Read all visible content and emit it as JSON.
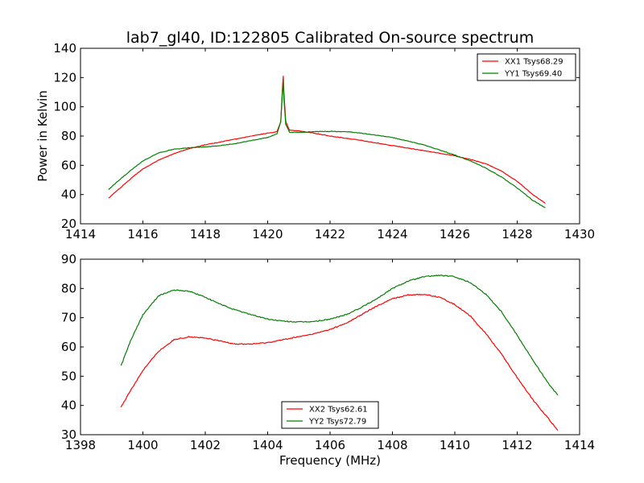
{
  "figure": {
    "title": "lab7_gl40, ID:122805 Calibrated On-source spectrum",
    "ylabel": "Power in Kelvin",
    "xlabel": "Frequency (MHz)"
  },
  "chart_data": [
    {
      "type": "line",
      "title": "lab7_gl40, ID:122805 Calibrated On-source spectrum",
      "ylabel": "Power in Kelvin",
      "xlabel": "",
      "xlim": [
        1414,
        1430
      ],
      "ylim": [
        20,
        140
      ],
      "xticks": [
        1414,
        1416,
        1418,
        1420,
        1422,
        1424,
        1426,
        1428,
        1430
      ],
      "yticks": [
        20,
        40,
        60,
        80,
        100,
        120,
        140
      ],
      "grid": false,
      "legend_position": "top-right",
      "series": [
        {
          "name": "XX1 Tsys68.29",
          "color": "#ff0000",
          "x": [
            1414.9,
            1415.3,
            1415.7,
            1416.0,
            1416.5,
            1417.0,
            1417.5,
            1418.0,
            1418.5,
            1419.0,
            1419.5,
            1420.0,
            1420.3,
            1420.42,
            1420.48,
            1420.5,
            1420.52,
            1420.58,
            1420.7,
            1421.0,
            1421.5,
            1422.0,
            1423.0,
            1424.0,
            1425.0,
            1426.0,
            1426.5,
            1427.0,
            1427.5,
            1428.0,
            1428.5,
            1428.9
          ],
          "y": [
            37.5,
            45.0,
            52.5,
            57.5,
            63.5,
            68.0,
            71.5,
            74.0,
            76.0,
            78.0,
            80.0,
            82.0,
            83.0,
            90.0,
            115.0,
            121.0,
            110.0,
            90.0,
            84.0,
            83.5,
            82.0,
            80.0,
            77.0,
            73.5,
            70.0,
            66.5,
            64.0,
            61.0,
            56.0,
            49.0,
            40.0,
            34.0
          ]
        },
        {
          "name": "YY1 Tsys69.40",
          "color": "#008000",
          "x": [
            1414.9,
            1415.3,
            1415.7,
            1416.0,
            1416.5,
            1417.0,
            1417.5,
            1418.0,
            1418.5,
            1419.0,
            1419.5,
            1420.0,
            1420.3,
            1420.42,
            1420.48,
            1420.5,
            1420.52,
            1420.58,
            1420.7,
            1421.0,
            1421.5,
            1422.0,
            1422.5,
            1423.0,
            1424.0,
            1425.0,
            1426.0,
            1426.5,
            1427.0,
            1427.5,
            1428.0,
            1428.5,
            1428.9
          ],
          "y": [
            43.5,
            51.0,
            58.0,
            63.0,
            68.5,
            71.0,
            72.0,
            72.5,
            73.5,
            75.0,
            77.0,
            79.0,
            81.5,
            90.0,
            112.0,
            118.0,
            106.0,
            88.0,
            82.5,
            82.5,
            83.0,
            83.2,
            83.0,
            82.0,
            79.0,
            74.0,
            67.0,
            63.0,
            58.0,
            52.0,
            44.5,
            36.0,
            31.0
          ]
        }
      ]
    },
    {
      "type": "line",
      "title": "",
      "ylabel": "",
      "xlabel": "Frequency (MHz)",
      "xlim": [
        1398,
        1414
      ],
      "ylim": [
        30,
        90
      ],
      "xticks": [
        1398,
        1400,
        1402,
        1404,
        1406,
        1408,
        1410,
        1412,
        1414
      ],
      "yticks": [
        30,
        40,
        50,
        60,
        70,
        80,
        90
      ],
      "grid": false,
      "legend_position": "bottom-center",
      "series": [
        {
          "name": "XX2 Tsys62.61",
          "color": "#ff0000",
          "x": [
            1399.3,
            1399.6,
            1400.0,
            1400.5,
            1401.0,
            1401.5,
            1402.0,
            1402.5,
            1403.0,
            1403.5,
            1404.0,
            1404.5,
            1405.0,
            1405.5,
            1406.0,
            1406.5,
            1407.0,
            1407.5,
            1408.0,
            1408.5,
            1409.0,
            1409.5,
            1410.0,
            1410.5,
            1411.0,
            1411.5,
            1412.0,
            1412.5,
            1413.0,
            1413.3
          ],
          "y": [
            39.5,
            45.0,
            52.0,
            58.5,
            62.5,
            63.5,
            63.0,
            62.0,
            61.0,
            61.0,
            61.5,
            62.5,
            63.5,
            64.5,
            66.0,
            68.0,
            71.0,
            74.0,
            76.5,
            77.8,
            78.0,
            77.0,
            74.5,
            70.5,
            64.5,
            57.5,
            49.5,
            42.0,
            35.5,
            31.5
          ]
        },
        {
          "name": "YY2 Tsys72.79",
          "color": "#008000",
          "x": [
            1399.3,
            1399.6,
            1400.0,
            1400.5,
            1401.0,
            1401.5,
            1402.0,
            1402.5,
            1403.0,
            1403.5,
            1404.0,
            1404.5,
            1405.0,
            1405.5,
            1406.0,
            1406.5,
            1407.0,
            1407.5,
            1408.0,
            1408.5,
            1409.0,
            1409.5,
            1410.0,
            1410.5,
            1411.0,
            1411.5,
            1412.0,
            1412.5,
            1413.0,
            1413.3
          ],
          "y": [
            53.5,
            62.0,
            71.0,
            77.5,
            79.5,
            79.0,
            77.0,
            74.5,
            72.5,
            71.0,
            69.5,
            68.8,
            68.5,
            68.7,
            69.5,
            71.0,
            73.5,
            76.5,
            80.0,
            82.5,
            84.0,
            84.5,
            84.0,
            82.0,
            78.0,
            72.0,
            64.0,
            55.5,
            47.5,
            43.5
          ]
        }
      ]
    }
  ]
}
